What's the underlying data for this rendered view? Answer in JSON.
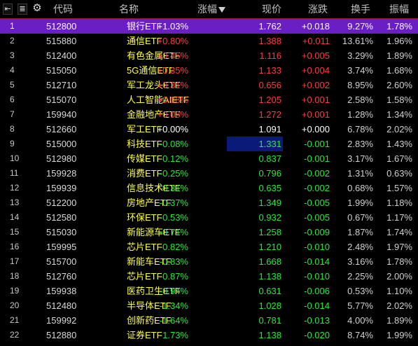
{
  "toolbar": {
    "first_icon": "first-page-icon",
    "sort_icon": "sort-icon",
    "settings_icon": "gear-icon"
  },
  "columns": {
    "code": "代码",
    "name": "名称",
    "change_pct": "涨幅",
    "price": "现价",
    "change": "涨跌",
    "turnover": "换手",
    "amplitude": "振幅"
  },
  "sort": {
    "column": "涨幅",
    "direction": "desc"
  },
  "colors": {
    "up": "#ff3b3b",
    "down": "#28e83a",
    "flat": "#ffffff",
    "name": "#ffff3c",
    "selected_row": "#6a1fc4"
  },
  "rows": [
    {
      "idx": "1",
      "code": "512800",
      "name": "银行ETF",
      "change_pct": "+1.03%",
      "price": "1.762",
      "change": "+0.018",
      "turnover": "9.27%",
      "amplitude": "1.78%",
      "dir": "up",
      "selected": true
    },
    {
      "idx": "2",
      "code": "515880",
      "name": "通信ETF",
      "change_pct": "+0.80%",
      "price": "1.388",
      "change": "+0.011",
      "turnover": "13.61%",
      "amplitude": "1.96%",
      "dir": "up"
    },
    {
      "idx": "3",
      "code": "512400",
      "name": "有色金属ETF",
      "change_pct": "+0.45%",
      "price": "1.116",
      "change": "+0.005",
      "turnover": "3.29%",
      "amplitude": "1.89%",
      "dir": "up"
    },
    {
      "idx": "4",
      "code": "515050",
      "name": "5G通信ETF",
      "change_pct": "+0.35%",
      "price": "1.133",
      "change": "+0.004",
      "turnover": "3.74%",
      "amplitude": "1.68%",
      "dir": "up"
    },
    {
      "idx": "5",
      "code": "512710",
      "name": "军工龙头ETF",
      "change_pct": "+0.31%",
      "price": "0.656",
      "change": "+0.002",
      "turnover": "8.95%",
      "amplitude": "2.60%",
      "dir": "up"
    },
    {
      "idx": "6",
      "code": "515070",
      "name": "人工智能AIETF",
      "change_pct": "+0.08%",
      "price": "1.205",
      "change": "+0.001",
      "turnover": "2.58%",
      "amplitude": "1.58%",
      "dir": "up"
    },
    {
      "idx": "7",
      "code": "159940",
      "name": "金融地产ETF",
      "change_pct": "+0.08%",
      "price": "1.272",
      "change": "+0.001",
      "turnover": "1.28%",
      "amplitude": "1.34%",
      "dir": "up"
    },
    {
      "idx": "8",
      "code": "512660",
      "name": "军工ETF",
      "change_pct": "+0.00%",
      "price": "1.091",
      "change": "+0.000",
      "turnover": "6.78%",
      "amplitude": "2.02%",
      "dir": "flat"
    },
    {
      "idx": "9",
      "code": "515000",
      "name": "科技ETF",
      "change_pct": "-0.08%",
      "price": "1.331",
      "change": "-0.001",
      "turnover": "2.83%",
      "amplitude": "1.43%",
      "dir": "down",
      "cursor": true
    },
    {
      "idx": "10",
      "code": "512980",
      "name": "传媒ETF",
      "change_pct": "-0.12%",
      "price": "0.837",
      "change": "-0.001",
      "turnover": "3.17%",
      "amplitude": "1.67%",
      "dir": "down"
    },
    {
      "idx": "11",
      "code": "159928",
      "name": "消费ETF",
      "change_pct": "-0.25%",
      "price": "0.796",
      "change": "-0.002",
      "turnover": "1.31%",
      "amplitude": "0.63%",
      "dir": "down"
    },
    {
      "idx": "12",
      "code": "159939",
      "name": "信息技术ETF",
      "change_pct": "-0.31%",
      "price": "0.635",
      "change": "-0.002",
      "turnover": "0.68%",
      "amplitude": "1.57%",
      "dir": "down"
    },
    {
      "idx": "13",
      "code": "512200",
      "name": "房地产ETF",
      "change_pct": "-0.37%",
      "price": "1.349",
      "change": "-0.005",
      "turnover": "1.99%",
      "amplitude": "1.18%",
      "dir": "down"
    },
    {
      "idx": "14",
      "code": "512580",
      "name": "环保ETF",
      "change_pct": "-0.53%",
      "price": "0.932",
      "change": "-0.005",
      "turnover": "0.67%",
      "amplitude": "1.17%",
      "dir": "down"
    },
    {
      "idx": "15",
      "code": "515030",
      "name": "新能源车ETF",
      "change_pct": "-0.71%",
      "price": "1.258",
      "change": "-0.009",
      "turnover": "1.87%",
      "amplitude": "1.74%",
      "dir": "down"
    },
    {
      "idx": "16",
      "code": "159995",
      "name": "芯片ETF",
      "change_pct": "-0.82%",
      "price": "1.210",
      "change": "-0.010",
      "turnover": "2.48%",
      "amplitude": "1.97%",
      "dir": "down"
    },
    {
      "idx": "17",
      "code": "515700",
      "name": "新能车ETF",
      "change_pct": "-0.83%",
      "price": "1.668",
      "change": "-0.014",
      "turnover": "3.16%",
      "amplitude": "1.78%",
      "dir": "down"
    },
    {
      "idx": "18",
      "code": "512760",
      "name": "芯片ETF",
      "change_pct": "-0.87%",
      "price": "1.138",
      "change": "-0.010",
      "turnover": "2.25%",
      "amplitude": "2.00%",
      "dir": "down"
    },
    {
      "idx": "19",
      "code": "159938",
      "name": "医药卫生ETF",
      "change_pct": "-0.94%",
      "price": "0.631",
      "change": "-0.006",
      "turnover": "0.53%",
      "amplitude": "1.10%",
      "dir": "down"
    },
    {
      "idx": "20",
      "code": "512480",
      "name": "半导体ETF",
      "change_pct": "-1.34%",
      "price": "1.028",
      "change": "-0.014",
      "turnover": "5.77%",
      "amplitude": "2.02%",
      "dir": "down"
    },
    {
      "idx": "21",
      "code": "159992",
      "name": "创新药ETF",
      "change_pct": "-1.64%",
      "price": "0.781",
      "change": "-0.013",
      "turnover": "4.00%",
      "amplitude": "1.89%",
      "dir": "down"
    },
    {
      "idx": "22",
      "code": "512880",
      "name": "证券ETF",
      "change_pct": "-1.73%",
      "price": "1.138",
      "change": "-0.020",
      "turnover": "8.74%",
      "amplitude": "1.99%",
      "dir": "down"
    }
  ]
}
